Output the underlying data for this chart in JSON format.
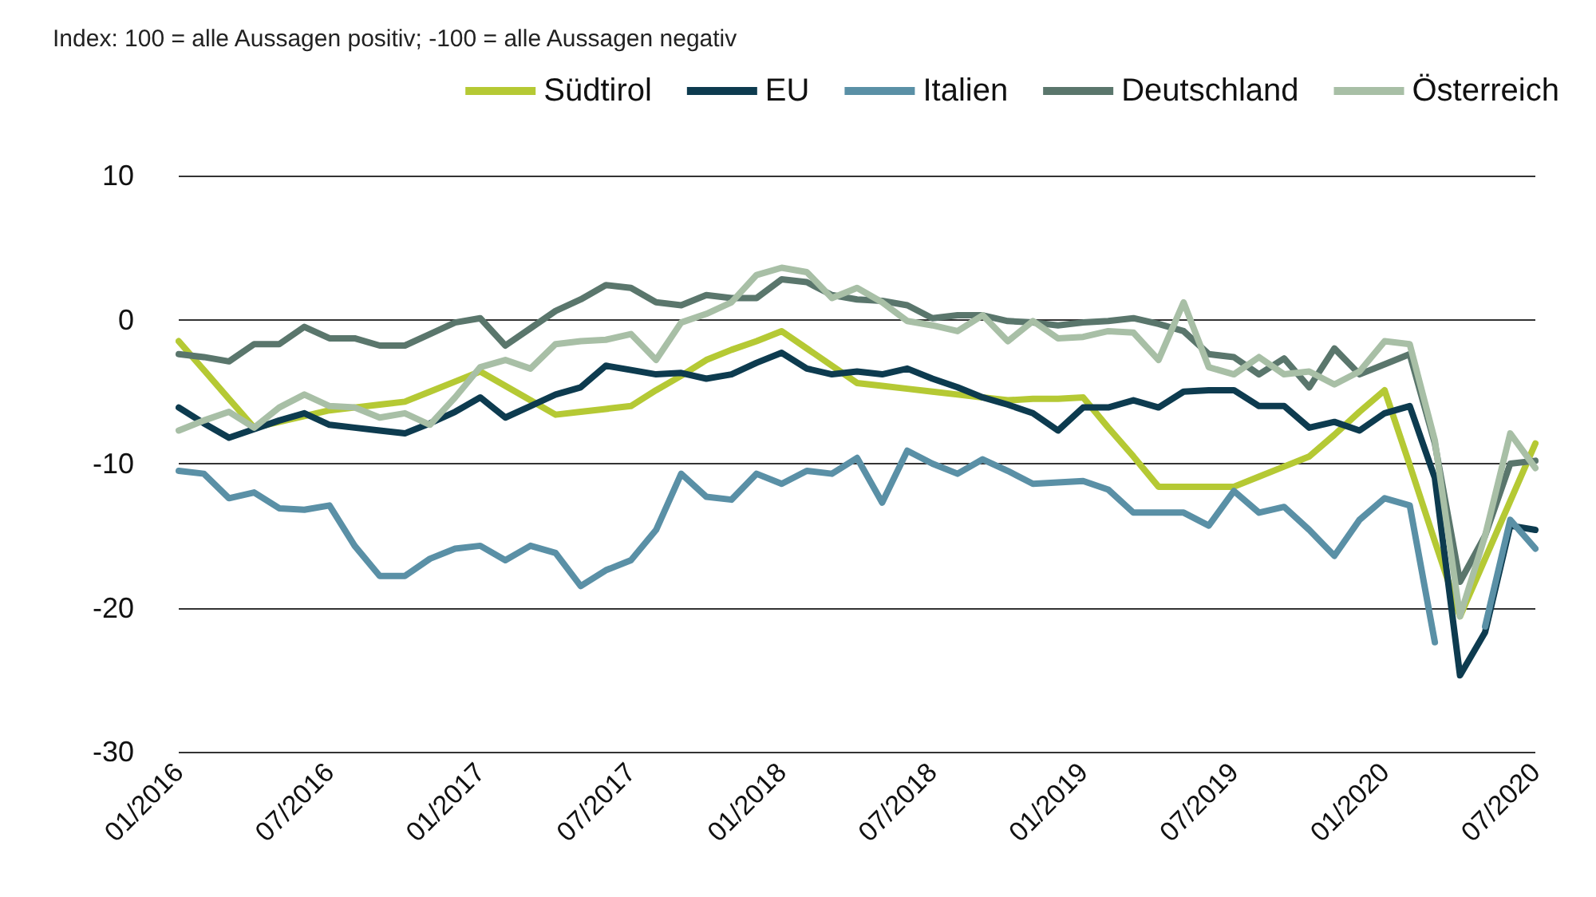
{
  "chart_data": {
    "type": "line",
    "subtitle": "Index: 100 = alle Aussagen positiv; -100 = alle Aussagen negativ",
    "categories": [
      "01/2016",
      null,
      null,
      null,
      null,
      null,
      "07/2016",
      null,
      null,
      null,
      null,
      null,
      "01/2017",
      null,
      null,
      null,
      null,
      null,
      "07/2017",
      null,
      null,
      null,
      null,
      null,
      "01/2018",
      null,
      null,
      null,
      null,
      null,
      "07/2018",
      null,
      null,
      null,
      null,
      null,
      "01/2019",
      null,
      null,
      null,
      null,
      null,
      "07/2019",
      null,
      null,
      null,
      null,
      null,
      "01/2020",
      null,
      null,
      null,
      null,
      null,
      "07/2020"
    ],
    "series": [
      {
        "name": "Südtirol",
        "color": "#b5c934",
        "values": [
          -1.5,
          -3.5,
          -5.5,
          -7.5,
          -7.1,
          -6.7,
          -6.3,
          -6.1,
          -5.9,
          -5.7,
          -5,
          -4.3,
          -3.6,
          -4.6,
          -5.6,
          -6.6,
          -6.4,
          -6.2,
          -6,
          -4.9,
          -3.9,
          -2.8,
          -2.1,
          -1.5,
          -0.8,
          -2,
          -3.2,
          -4.4,
          -4.6,
          -4.8,
          -5,
          -5.2,
          -5.4,
          -5.6,
          -5.5,
          -5.5,
          -5.4,
          -7.5,
          -9.5,
          -11.6,
          -11.6,
          -11.6,
          -11.6,
          -10.9,
          -10.2,
          -9.5,
          -8,
          -6.4,
          -4.9,
          -10.1,
          -15.4,
          -20.6,
          -16.6,
          -12.6,
          -8.6
        ]
      },
      {
        "name": "EU",
        "color": "#0d3b4f",
        "values": [
          -6.1,
          -7.2,
          -8.2,
          -7.6,
          -7,
          -6.5,
          -7.3,
          -7.5,
          -7.7,
          -7.9,
          -7.2,
          -6.4,
          -5.4,
          -6.8,
          -6,
          -5.2,
          -4.7,
          -3.2,
          -3.5,
          -3.8,
          -3.7,
          -4.1,
          -3.8,
          -3,
          -2.3,
          -3.4,
          -3.8,
          -3.6,
          -3.8,
          -3.4,
          -4.1,
          -4.7,
          -5.4,
          -5.9,
          -6.5,
          -7.7,
          -6.1,
          -6.1,
          -5.6,
          -6.1,
          -5,
          -4.9,
          -4.9,
          -6,
          -6,
          -7.5,
          -7.1,
          -7.7,
          -6.5,
          -6,
          -11,
          -24.7,
          -21.7,
          -14.3,
          -14.6
        ]
      },
      {
        "name": "Italien",
        "color": "#5a90a6",
        "values": [
          -10.5,
          -10.7,
          -12.4,
          -12,
          -13.1,
          -13.2,
          -12.9,
          -15.7,
          -17.8,
          -17.8,
          -16.6,
          -15.9,
          -15.7,
          -16.7,
          -15.7,
          -16.2,
          -18.5,
          -17.4,
          -16.7,
          -14.6,
          -10.7,
          -12.3,
          -12.5,
          -10.7,
          -11.4,
          -10.5,
          -10.7,
          -9.6,
          -12.7,
          -9.1,
          -10,
          -10.7,
          -9.7,
          -10.5,
          -11.4,
          -11.3,
          -11.2,
          -11.8,
          -13.4,
          -13.4,
          -13.4,
          -14.3,
          -11.9,
          -13.4,
          -13,
          -14.6,
          -16.4,
          -13.9,
          -12.4,
          -12.9,
          -22.4,
          null,
          -21.3,
          -13.9,
          -15.9
        ]
      },
      {
        "name": "Deutschland",
        "color": "#5a766c",
        "values": [
          -2.4,
          -2.6,
          -2.9,
          -1.7,
          -1.7,
          -0.5,
          -1.3,
          -1.3,
          -1.8,
          -1.8,
          -1,
          -0.2,
          0.1,
          -1.8,
          -0.6,
          0.6,
          1.4,
          2.4,
          2.2,
          1.2,
          1,
          1.7,
          1.5,
          1.5,
          2.8,
          2.6,
          1.7,
          1.4,
          1.3,
          1,
          0.1,
          0.3,
          0.3,
          -0.1,
          -0.2,
          -0.4,
          -0.2,
          -0.1,
          0.1,
          -0.3,
          -0.8,
          -2.4,
          -2.6,
          -3.8,
          -2.7,
          -4.7,
          -2,
          -3.8,
          -3.1,
          -2.4,
          -8.6,
          -18.2,
          -15,
          -10,
          -9.8
        ]
      },
      {
        "name": "Österreich",
        "color": "#a8bfa6",
        "values": [
          -7.7,
          -7,
          -6.4,
          -7.5,
          -6.1,
          -5.2,
          -6,
          -6.1,
          -6.8,
          -6.5,
          -7.3,
          -5.4,
          -3.3,
          -2.8,
          -3.4,
          -1.7,
          -1.5,
          -1.4,
          -1,
          -2.8,
          -0.2,
          0.4,
          1.2,
          3.1,
          3.6,
          3.3,
          1.5,
          2.2,
          1.2,
          -0.1,
          -0.4,
          -0.8,
          0.3,
          -1.5,
          -0.1,
          -1.3,
          -1.2,
          -0.8,
          -0.9,
          -2.8,
          1.2,
          -3.3,
          -3.8,
          -2.6,
          -3.8,
          -3.6,
          -4.5,
          -3.6,
          -1.5,
          -1.7,
          -8.4,
          -20.6,
          -15,
          -7.9,
          -10.3
        ]
      }
    ],
    "ylim": [
      -30,
      10
    ],
    "yticks": [
      -30,
      -20,
      -10,
      0,
      10
    ],
    "grid": "y",
    "legend": "top right",
    "marker": "none",
    "line_style": "solid"
  }
}
